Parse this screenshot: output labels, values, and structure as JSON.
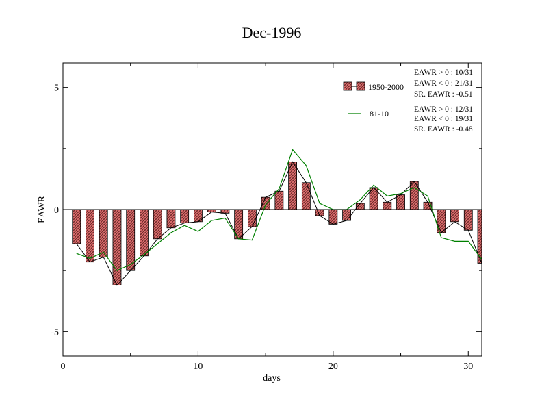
{
  "chart_data": {
    "type": "bar",
    "title": "Dec-1996",
    "xlabel": "days",
    "ylabel": "EAWR",
    "xlim": [
      0,
      31
    ],
    "ylim": [
      -6,
      6
    ],
    "x_ticks": [
      0,
      10,
      20,
      30
    ],
    "y_ticks": [
      -5,
      0,
      5
    ],
    "x": [
      1,
      2,
      3,
      4,
      5,
      6,
      7,
      8,
      9,
      10,
      11,
      12,
      13,
      14,
      15,
      16,
      17,
      18,
      19,
      20,
      21,
      22,
      23,
      24,
      25,
      26,
      27,
      28,
      29,
      30,
      31
    ],
    "series": [
      {
        "name": "1950-2000",
        "kind": "bar",
        "color": "#e07070",
        "values": [
          -1.4,
          -2.15,
          -1.95,
          -3.1,
          -2.5,
          -1.9,
          -1.2,
          -0.75,
          -0.55,
          -0.5,
          -0.1,
          -0.15,
          -1.2,
          -0.7,
          0.5,
          0.75,
          1.95,
          1.1,
          -0.25,
          -0.6,
          -0.45,
          0.25,
          0.9,
          0.3,
          0.6,
          1.15,
          0.3,
          -0.95,
          -0.5,
          -0.85,
          -2.2
        ]
      },
      {
        "name": "81-10",
        "kind": "line",
        "color": "#008000",
        "values": [
          -1.8,
          -2.0,
          -1.75,
          -2.5,
          -2.25,
          -1.85,
          -1.4,
          -0.95,
          -0.65,
          -0.9,
          -0.45,
          -0.35,
          -1.2,
          -1.25,
          0.2,
          0.85,
          2.45,
          1.8,
          0.25,
          0.0,
          0.0,
          0.4,
          1.0,
          0.55,
          0.65,
          0.9,
          0.55,
          -1.15,
          -1.3,
          -1.3,
          -2.05
        ]
      }
    ],
    "legend_position": "top-right",
    "grid": false,
    "stats": [
      [
        "EAWR > 0 : 10/31",
        "EAWR < 0 : 21/31",
        "SR. EAWR : -0.51"
      ],
      [
        "EAWR > 0 : 12/31",
        "EAWR < 0 : 19/31",
        "SR. EAWR : -0.48"
      ]
    ]
  }
}
